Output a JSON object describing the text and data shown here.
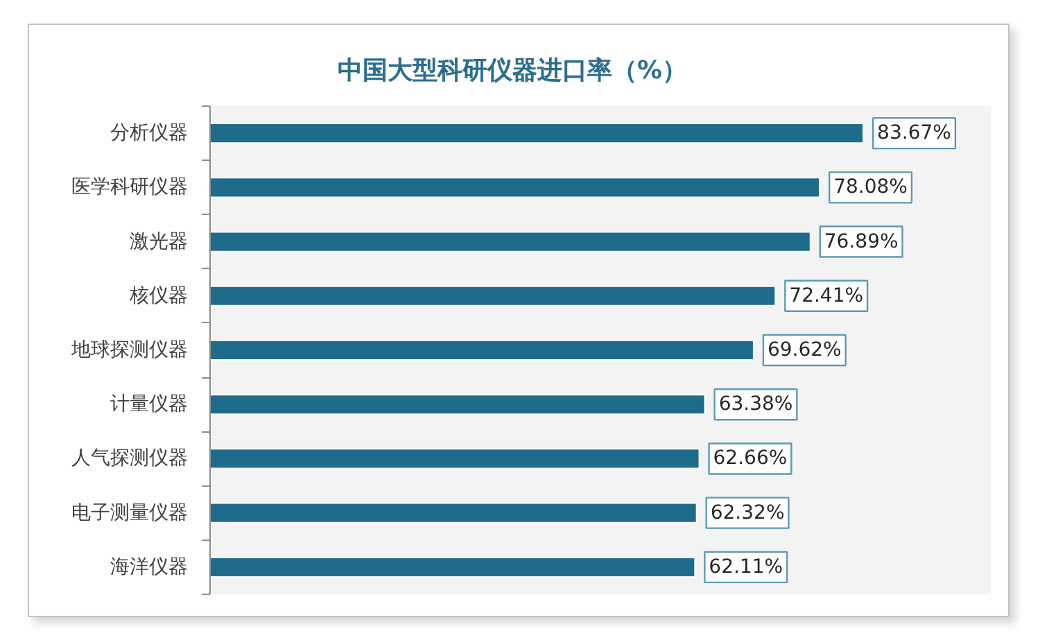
{
  "chart_data": {
    "type": "bar",
    "orientation": "horizontal",
    "title": "中国大型科研仪器进口率（%）",
    "categories": [
      "分析仪器",
      "医学科研仪器",
      "激光器",
      "核仪器",
      "地球探测仪器",
      "计量仪器",
      "人气探测仪器",
      "电子测量仪器",
      "海洋仪器"
    ],
    "values": [
      83.67,
      78.08,
      76.89,
      72.41,
      69.62,
      63.38,
      62.66,
      62.32,
      62.11
    ],
    "value_labels": [
      "83.67%",
      "78.08%",
      "76.89%",
      "72.41%",
      "69.62%",
      "63.38%",
      "62.66%",
      "62.32%",
      "62.11%"
    ],
    "color": "#1f6b8c",
    "xlim": [
      0,
      100
    ],
    "tick_labels": "y"
  }
}
